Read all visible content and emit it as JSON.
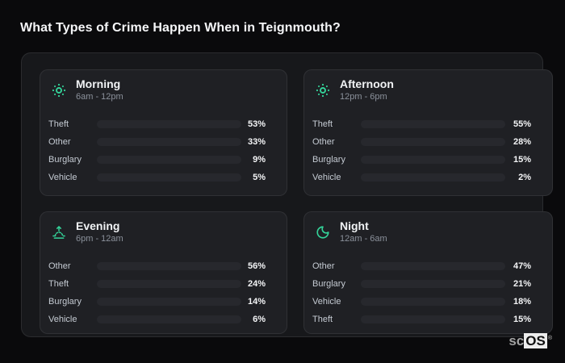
{
  "page": {
    "title": "What Types of Crime Happen When in Teignmouth?"
  },
  "colors": {
    "theft": "#9e57e3",
    "other": "#64748b",
    "burglary": "#e87b15",
    "vehicle": "#3b82f6",
    "accent": "#34d399"
  },
  "panels": [
    {
      "id": "morning",
      "icon": "sun-icon",
      "title": "Morning",
      "time_range": "6am - 12pm",
      "rows": [
        {
          "label": "Theft",
          "value": 53,
          "percent_label": "53%",
          "color_key": "theft"
        },
        {
          "label": "Other",
          "value": 33,
          "percent_label": "33%",
          "color_key": "other"
        },
        {
          "label": "Burglary",
          "value": 9,
          "percent_label": "9%",
          "color_key": "burglary"
        },
        {
          "label": "Vehicle",
          "value": 5,
          "percent_label": "5%",
          "color_key": "vehicle"
        }
      ]
    },
    {
      "id": "afternoon",
      "icon": "sun-icon",
      "title": "Afternoon",
      "time_range": "12pm - 6pm",
      "rows": [
        {
          "label": "Theft",
          "value": 55,
          "percent_label": "55%",
          "color_key": "theft"
        },
        {
          "label": "Other",
          "value": 28,
          "percent_label": "28%",
          "color_key": "other"
        },
        {
          "label": "Burglary",
          "value": 15,
          "percent_label": "15%",
          "color_key": "burglary"
        },
        {
          "label": "Vehicle",
          "value": 2,
          "percent_label": "2%",
          "color_key": "vehicle"
        }
      ]
    },
    {
      "id": "evening",
      "icon": "sunset-icon",
      "title": "Evening",
      "time_range": "6pm - 12am",
      "rows": [
        {
          "label": "Other",
          "value": 56,
          "percent_label": "56%",
          "color_key": "other"
        },
        {
          "label": "Theft",
          "value": 24,
          "percent_label": "24%",
          "color_key": "theft"
        },
        {
          "label": "Burglary",
          "value": 14,
          "percent_label": "14%",
          "color_key": "burglary"
        },
        {
          "label": "Vehicle",
          "value": 6,
          "percent_label": "6%",
          "color_key": "vehicle"
        }
      ]
    },
    {
      "id": "night",
      "icon": "moon-icon",
      "title": "Night",
      "time_range": "12am - 6am",
      "rows": [
        {
          "label": "Other",
          "value": 47,
          "percent_label": "47%",
          "color_key": "other"
        },
        {
          "label": "Burglary",
          "value": 21,
          "percent_label": "21%",
          "color_key": "burglary"
        },
        {
          "label": "Vehicle",
          "value": 18,
          "percent_label": "18%",
          "color_key": "vehicle"
        },
        {
          "label": "Theft",
          "value": 15,
          "percent_label": "15%",
          "color_key": "theft"
        }
      ]
    }
  ],
  "logo": {
    "prefix": "sc",
    "suffix": "OS",
    "registered_mark": "®"
  },
  "chart_data": [
    {
      "type": "bar",
      "orientation": "horizontal",
      "title": "Morning",
      "subtitle": "6am - 12pm",
      "categories": [
        "Theft",
        "Other",
        "Burglary",
        "Vehicle"
      ],
      "values": [
        53,
        33,
        9,
        5
      ],
      "unit": "%",
      "xlim": [
        0,
        100
      ],
      "grid": false,
      "legend": false
    },
    {
      "type": "bar",
      "orientation": "horizontal",
      "title": "Afternoon",
      "subtitle": "12pm - 6pm",
      "categories": [
        "Theft",
        "Other",
        "Burglary",
        "Vehicle"
      ],
      "values": [
        55,
        28,
        15,
        2
      ],
      "unit": "%",
      "xlim": [
        0,
        100
      ],
      "grid": false,
      "legend": false
    },
    {
      "type": "bar",
      "orientation": "horizontal",
      "title": "Evening",
      "subtitle": "6pm - 12am",
      "categories": [
        "Other",
        "Theft",
        "Burglary",
        "Vehicle"
      ],
      "values": [
        56,
        24,
        14,
        6
      ],
      "unit": "%",
      "xlim": [
        0,
        100
      ],
      "grid": false,
      "legend": false
    },
    {
      "type": "bar",
      "orientation": "horizontal",
      "title": "Night",
      "subtitle": "12am - 6am",
      "categories": [
        "Other",
        "Burglary",
        "Vehicle",
        "Theft"
      ],
      "values": [
        47,
        21,
        18,
        15
      ],
      "unit": "%",
      "xlim": [
        0,
        100
      ],
      "grid": false,
      "legend": false
    }
  ]
}
